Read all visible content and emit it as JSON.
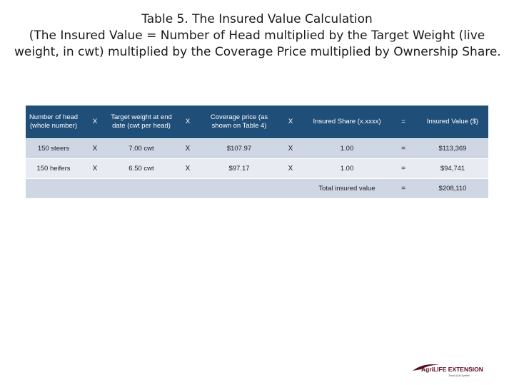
{
  "title": {
    "line1": "Table 5. The Insured Value Calculation",
    "line2": "(The Insured Value = Number of Head multiplied by the Target Weight (live",
    "line3": "weight, in cwt) multiplied by the Coverage Price multiplied by Ownership Share."
  },
  "table": {
    "headers": [
      "Number of head (whole number)",
      "X",
      "Target weight at end date (cwt per head)",
      "X",
      "Coverage price (as shown on Table 4)",
      "X",
      "Insured Share (x.xxxx)",
      "=",
      "Insured Value ($)"
    ],
    "rows": [
      [
        "150 steers",
        "X",
        "7.00 cwt",
        "X",
        "$107.97",
        "X",
        "1.00",
        "=",
        "$113,369"
      ],
      [
        "150 heifers",
        "X",
        "6.50 cwt",
        "X",
        "$97.17",
        "X",
        "1.00",
        "=",
        "$94,741"
      ]
    ],
    "total": {
      "label": "Total insured value",
      "operator": "=",
      "value": "$208,110"
    }
  },
  "logo": {
    "brand": "AgriLIFE EXTENSION",
    "sub": "Texas A&M System"
  },
  "colors": {
    "header_bg": "#1f4e79",
    "row_dark": "#cfd6e4",
    "row_light": "#e8ecf2",
    "logo_maroon": "#5c0a1e"
  }
}
